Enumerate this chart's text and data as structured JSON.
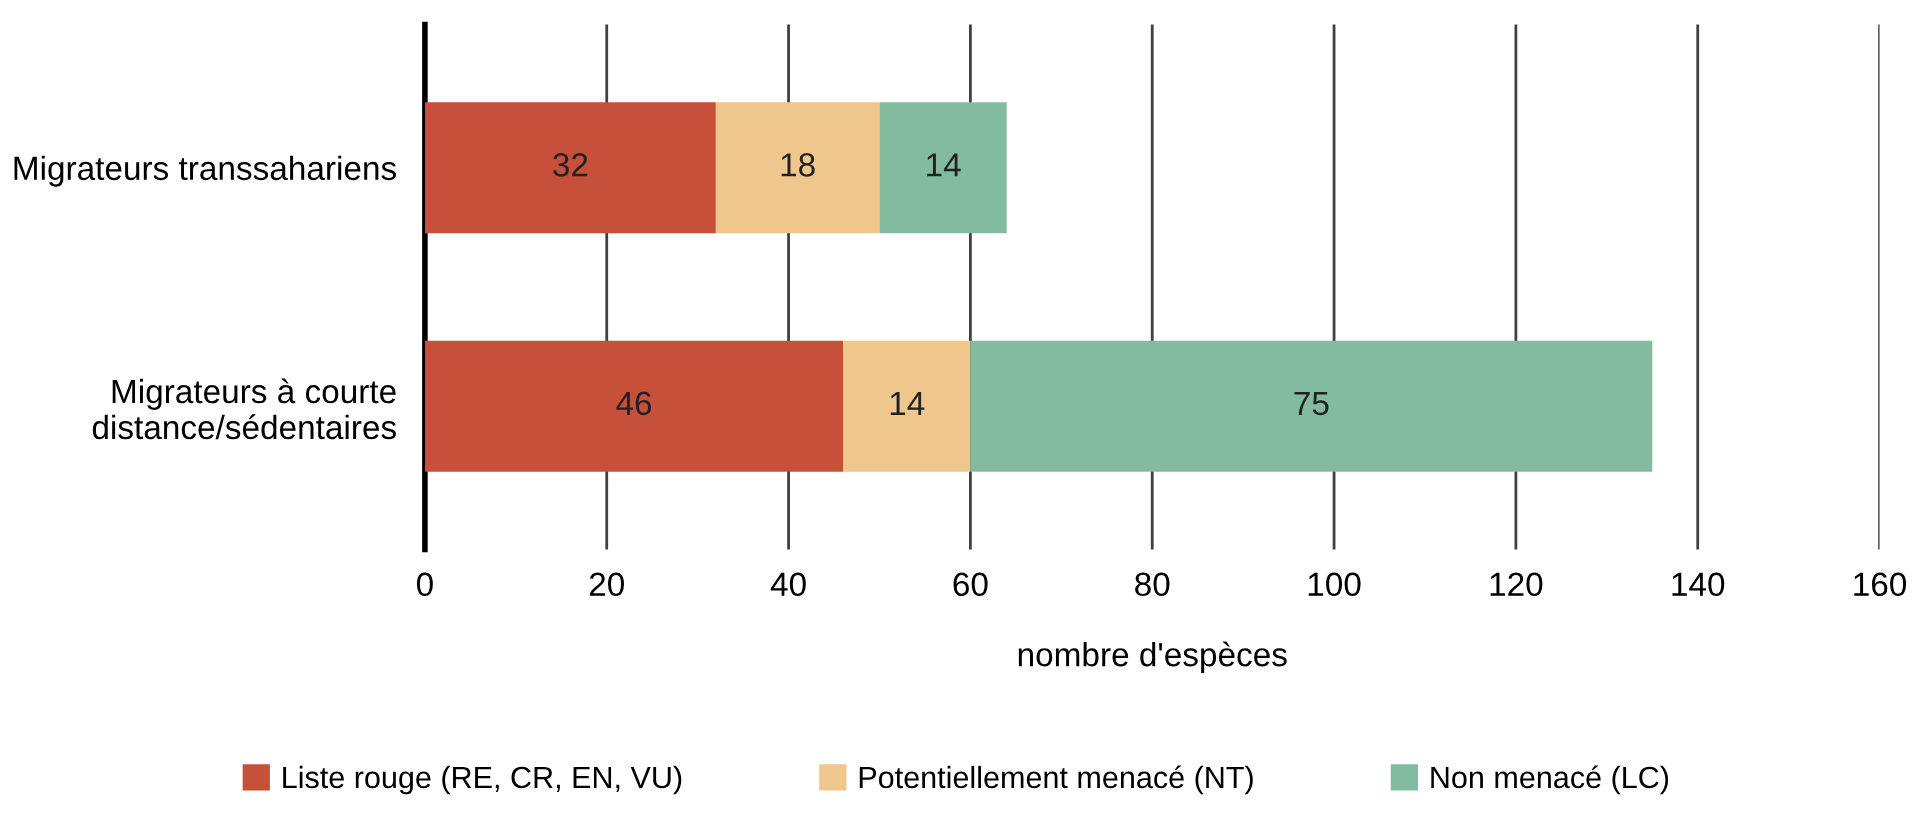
{
  "chart_data": {
    "type": "bar",
    "orientation": "horizontal",
    "stacked": true,
    "xlabel": "nombre d'espèces",
    "categories": [
      "Migrateurs transsahariens",
      "Migrateurs à courte\ndistance/sédentaires"
    ],
    "series": [
      {
        "name": "Liste rouge (RE, CR, EN, VU)",
        "color": "#c6503a",
        "values": [
          32,
          46
        ]
      },
      {
        "name": "Potentiellement menacé (NT)",
        "color": "#efc78c",
        "values": [
          18,
          14
        ]
      },
      {
        "name": "Non menacé (LC)",
        "color": "#82bba0",
        "values": [
          14,
          75
        ]
      }
    ],
    "xlim": [
      0,
      160
    ],
    "xticks": [
      0,
      20,
      40,
      60,
      80,
      100,
      120,
      140,
      160
    ],
    "grid": "x",
    "legend": "bottom",
    "data_labels": true
  }
}
